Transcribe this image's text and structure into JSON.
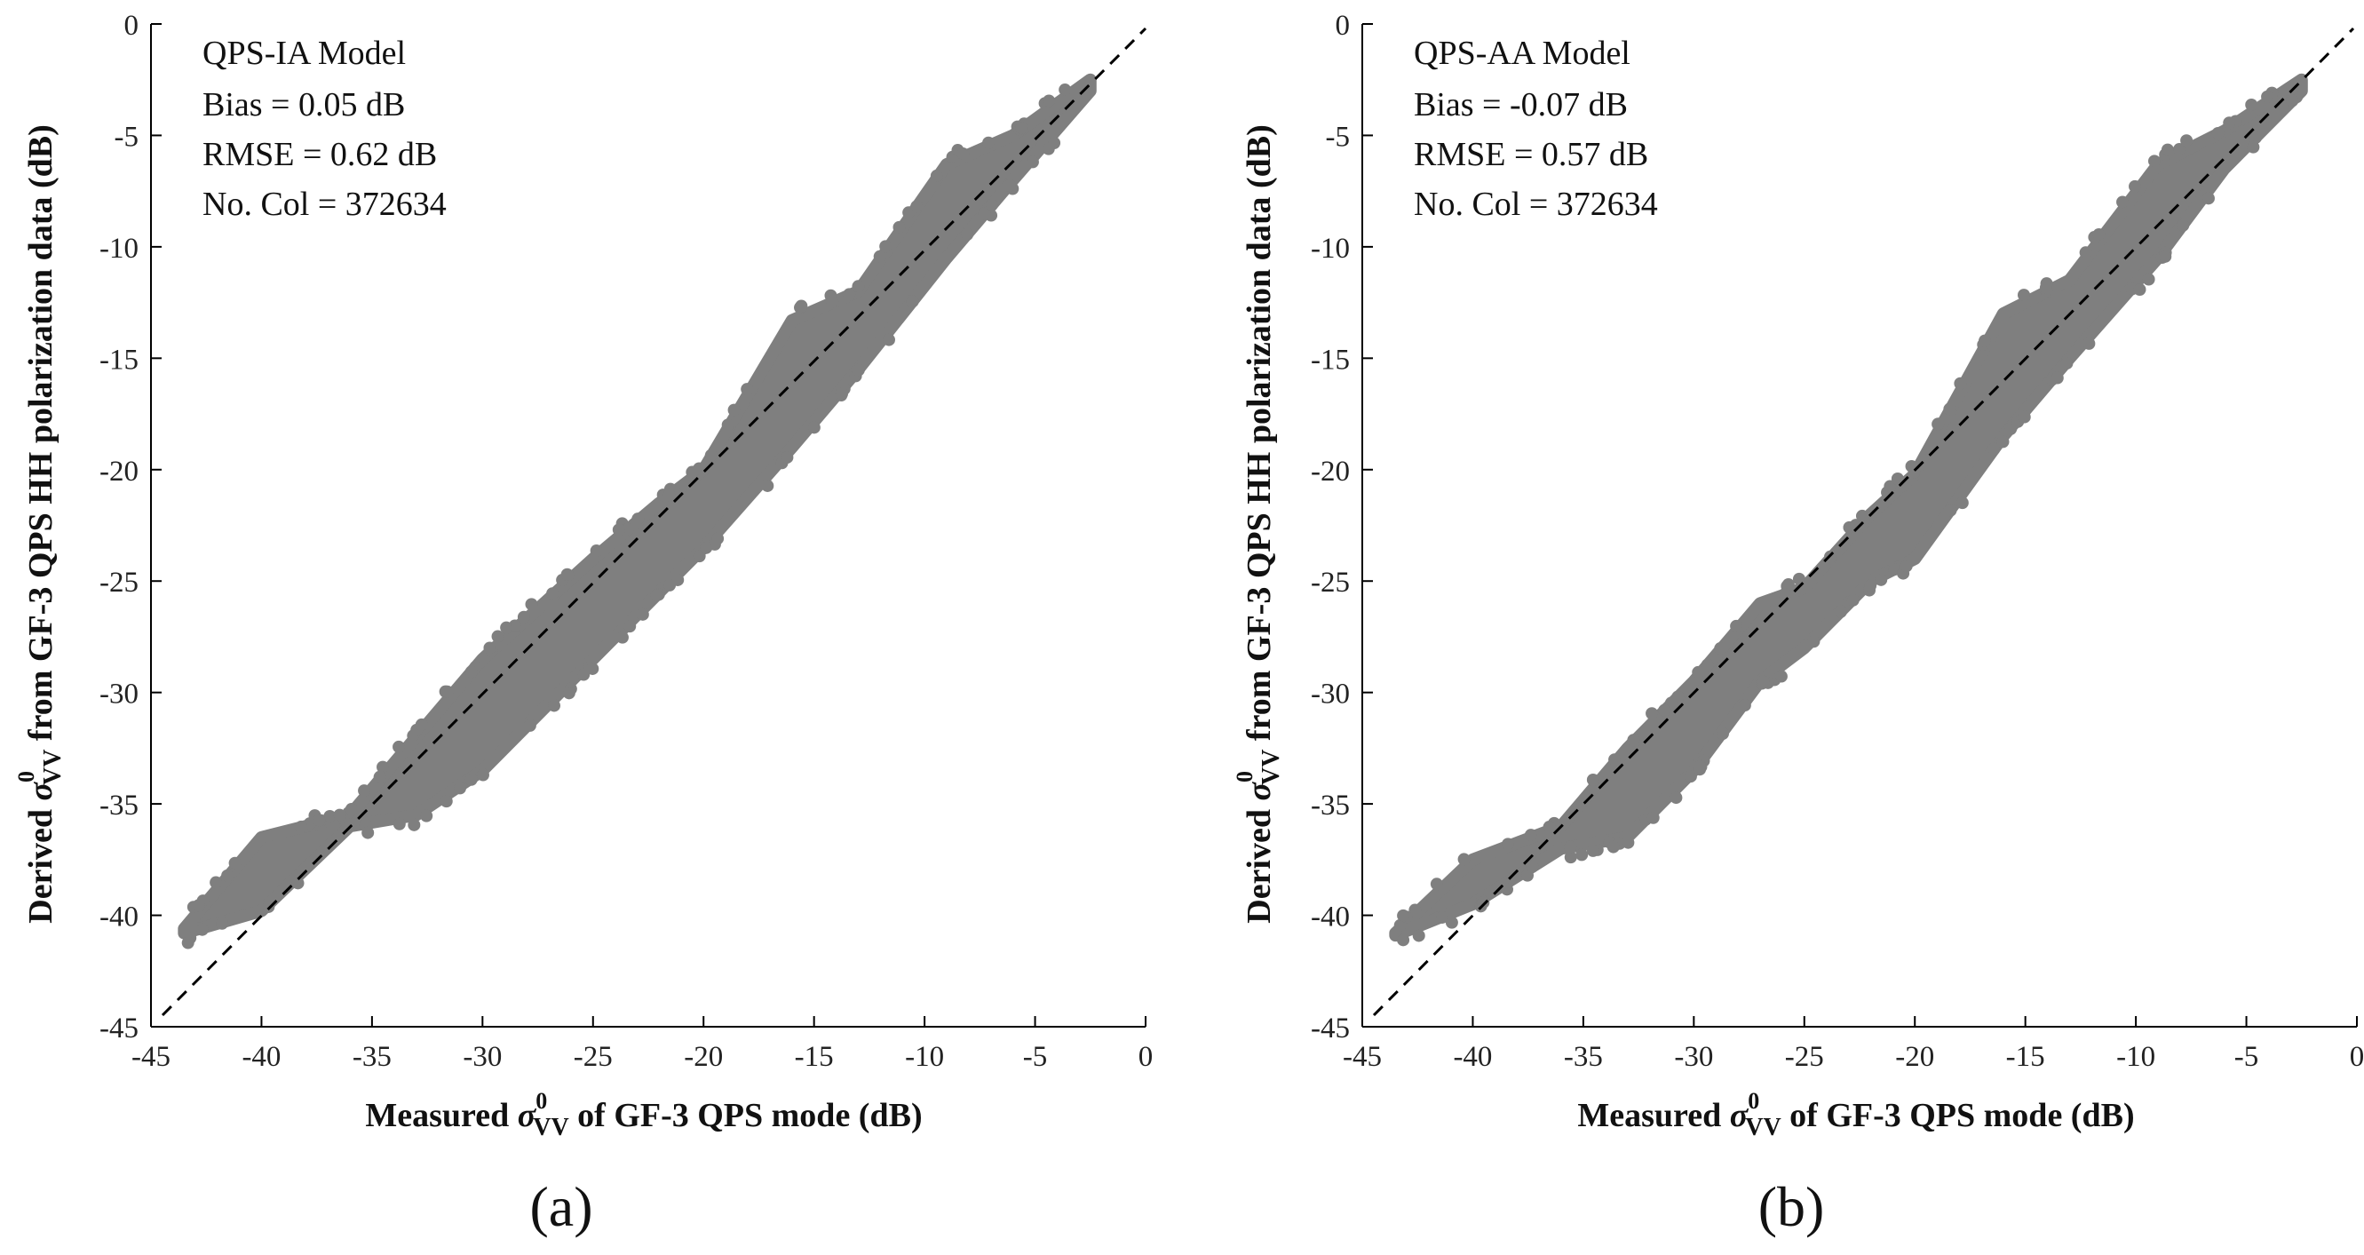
{
  "figure": {
    "charts": [
      {
        "id": "a",
        "panel_label": "(a)",
        "stats": [
          "QPS-IA Model",
          "Bias = 0.05 dB",
          "RMSE = 0.62 dB",
          "No. Col = 372634"
        ]
      },
      {
        "id": "b",
        "panel_label": "(b)",
        "stats": [
          "QPS-AA Model",
          "Bias = -0.07 dB",
          "RMSE = 0.57 dB",
          "No. Col = 372634"
        ]
      }
    ],
    "xlabel": {
      "pre": "Measured ",
      "symbol": "σ",
      "sup": "0",
      "sub": "VV",
      "post": " of GF-3 QPS mode (dB)"
    },
    "ylabel": {
      "pre": "Derived ",
      "symbol": "σ",
      "sup": "0",
      "sub": "VV",
      "post": " from GF-3 QPS HH polarization data (dB)"
    }
  },
  "chart_data": [
    {
      "type": "scatter",
      "title": "QPS-IA Model",
      "xlabel": "Measured σ0VV of GF-3 QPS mode (dB)",
      "ylabel": "Derived σ0VV from GF-3 QPS HH polarization data (dB)",
      "xlim": [
        -45,
        0
      ],
      "ylim": [
        -45,
        0
      ],
      "xticks": [
        -45,
        -40,
        -35,
        -30,
        -25,
        -20,
        -15,
        -10,
        -5,
        0
      ],
      "yticks": [
        -45,
        -40,
        -35,
        -30,
        -25,
        -20,
        -15,
        -10,
        -5,
        0
      ],
      "marker_color": "#7f7f7f",
      "reference_line": {
        "style": "dashed",
        "color": "#000000",
        "from": [
          -45,
          -45
        ],
        "to": [
          0,
          0
        ]
      },
      "annotations": {
        "bias_db": 0.05,
        "rmse_db": 0.62,
        "n_collocations": 372634
      },
      "band": {
        "x": [
          -43.5,
          -40,
          -36,
          -33,
          -30,
          -27,
          -25,
          -22,
          -20,
          -16,
          -13,
          -9,
          -6,
          -2.5
        ],
        "upper": [
          -40.6,
          -36.5,
          -35.5,
          -32,
          -28.5,
          -25.8,
          -24,
          -21.5,
          -20,
          -13.3,
          -12,
          -6.3,
          -5,
          -2.5
        ],
        "lower": [
          -40.8,
          -39.8,
          -36,
          -35.5,
          -33.5,
          -30.5,
          -28.5,
          -25.5,
          -23.5,
          -19,
          -15.5,
          -10.5,
          -7,
          -3
        ]
      }
    },
    {
      "type": "scatter",
      "title": "QPS-AA Model",
      "xlabel": "Measured σ0VV of GF-3 QPS mode (dB)",
      "ylabel": "Derived σ0VV from GF-3 QPS HH polarization data (dB)",
      "xlim": [
        -45,
        0
      ],
      "ylim": [
        -45,
        0
      ],
      "xticks": [
        -45,
        -40,
        -35,
        -30,
        -25,
        -20,
        -15,
        -10,
        -5,
        0
      ],
      "yticks": [
        -45,
        -40,
        -35,
        -30,
        -25,
        -20,
        -15,
        -10,
        -5,
        0
      ],
      "marker_color": "#7f7f7f",
      "reference_line": {
        "style": "dashed",
        "color": "#000000",
        "from": [
          -45,
          -45
        ],
        "to": [
          0,
          0
        ]
      },
      "annotations": {
        "bias_db": -0.07,
        "rmse_db": 0.57,
        "n_collocations": 372634
      },
      "band": {
        "x": [
          -43.5,
          -40,
          -36,
          -33,
          -30,
          -27,
          -25,
          -22,
          -20,
          -16,
          -13,
          -9,
          -6,
          -2.5
        ],
        "upper": [
          -40.8,
          -37.5,
          -36,
          -32.5,
          -29.5,
          -26,
          -25.3,
          -22,
          -20.2,
          -13,
          -11.5,
          -6.3,
          -4.8,
          -2.5
        ],
        "lower": [
          -40.9,
          -39.5,
          -37,
          -36.5,
          -33.5,
          -29.5,
          -28,
          -25,
          -24,
          -18.5,
          -15,
          -10.5,
          -6.5,
          -3
        ]
      }
    }
  ]
}
